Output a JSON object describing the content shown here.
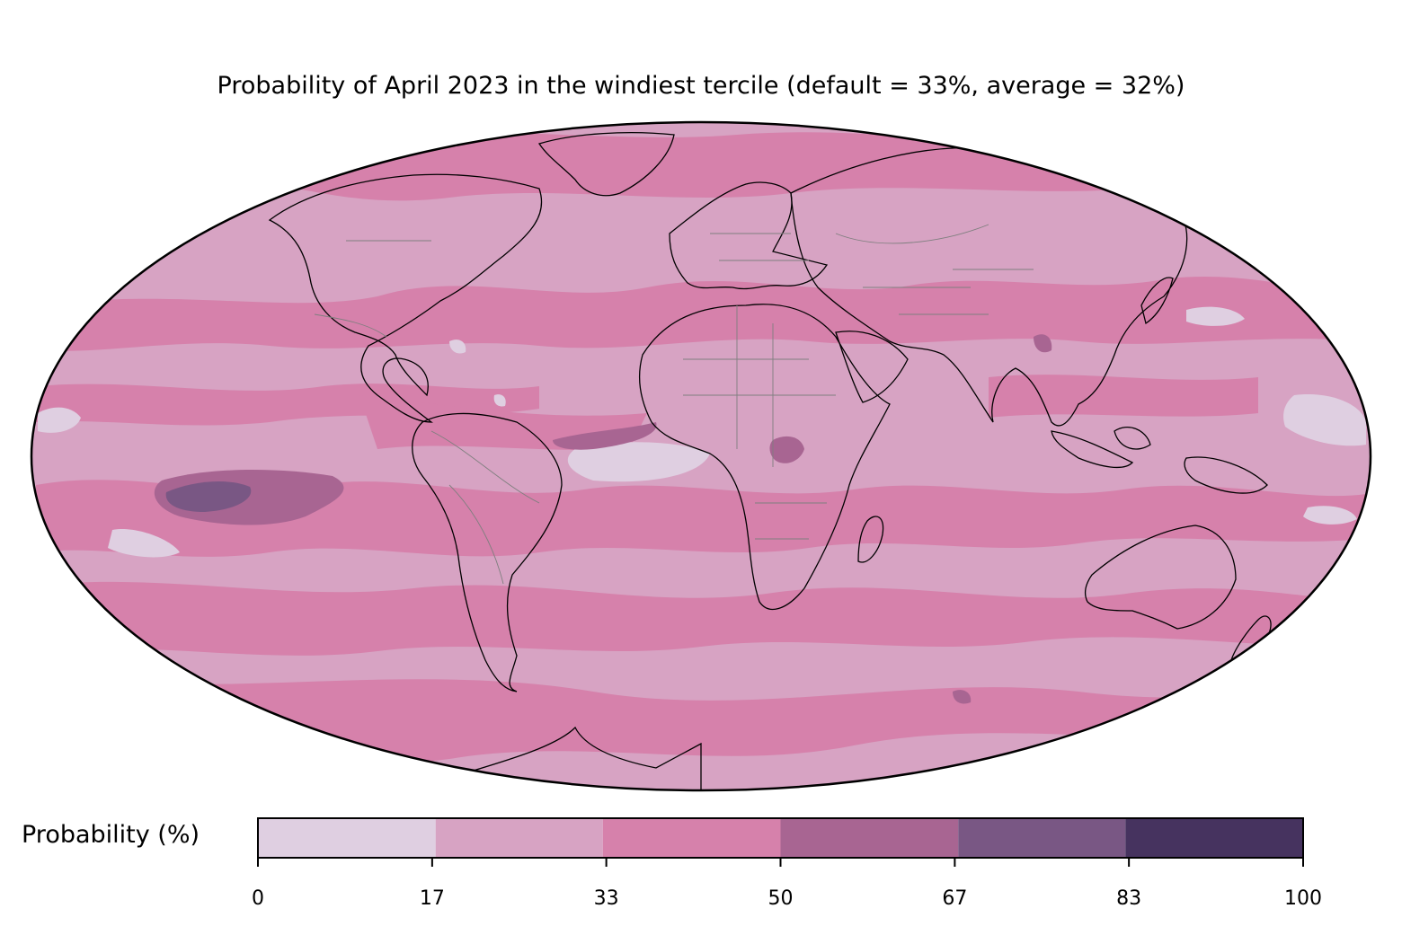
{
  "title": "Probability of April 2023 in the windiest tercile (default = 33%, average = 32%)",
  "map": {
    "projection": "mollweide",
    "ocean_base_color": "#d7a3c3",
    "land_base_color": "#d7a3c3",
    "coastline_color": "#000000",
    "border_color": "#7f7f7f"
  },
  "colorbar": {
    "label": "Probability (%)",
    "bins": [
      {
        "from": 0,
        "to": 17,
        "color": "#dfcfe1"
      },
      {
        "from": 17,
        "to": 33,
        "color": "#d7a3c3"
      },
      {
        "from": 33,
        "to": 50,
        "color": "#d681ab"
      },
      {
        "from": 50,
        "to": 67,
        "color": "#a86592"
      },
      {
        "from": 67,
        "to": 83,
        "color": "#795784"
      },
      {
        "from": 83,
        "to": 100,
        "color": "#46335f"
      }
    ],
    "ticks": [
      "0",
      "17",
      "33",
      "50",
      "67",
      "83",
      "100"
    ]
  }
}
